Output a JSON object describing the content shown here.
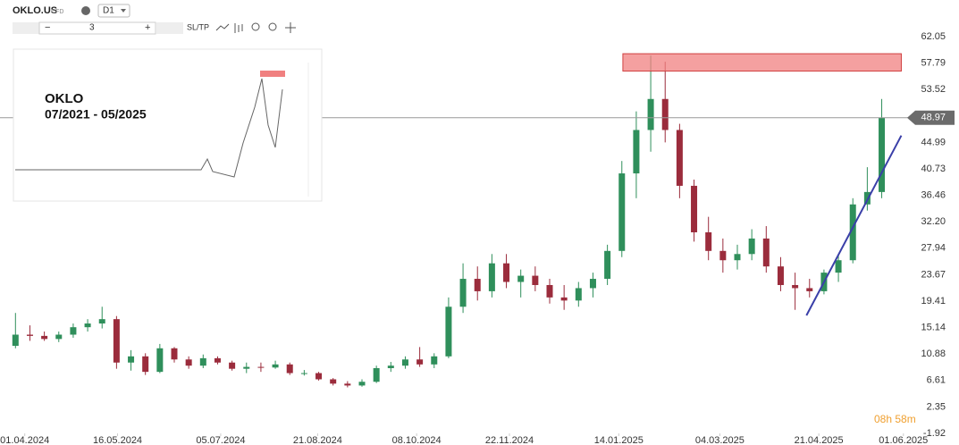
{
  "toolbar": {
    "symbol": "OKLO.US",
    "instrument": "CFD",
    "timeframe": "D1",
    "quantity": "3",
    "sltp": "SL/TP"
  },
  "chart_data": {
    "type": "candlestick",
    "annotation": {
      "title": "OKLO",
      "period": "07/2021 - 05/2025"
    },
    "x": [
      "25.03.2024",
      "01.04.2024",
      "08.04.2024",
      "15.04.2024",
      "22.04.2024",
      "29.04.2024",
      "06.05.2024",
      "13.05.2024",
      "20.05.2024",
      "27.05.2024",
      "03.06.2024",
      "10.06.2024",
      "17.06.2024",
      "24.06.2024",
      "01.07.2024",
      "08.07.2024",
      "15.07.2024",
      "22.07.2024",
      "29.07.2024",
      "05.08.2024",
      "12.08.2024",
      "19.08.2024",
      "26.08.2024",
      "02.09.2024",
      "09.09.2024",
      "16.09.2024",
      "23.09.2024",
      "30.09.2024",
      "07.10.2024",
      "14.10.2024",
      "21.10.2024",
      "28.10.2024",
      "04.11.2024",
      "11.11.2024",
      "18.11.2024",
      "25.11.2024",
      "02.12.2024",
      "09.12.2024",
      "16.12.2024",
      "23.12.2024",
      "30.12.2024",
      "06.01.2025",
      "13.01.2025",
      "20.01.2025",
      "27.01.2025",
      "03.02.2025",
      "10.02.2025",
      "17.02.2025",
      "24.02.2025",
      "03.03.2025",
      "10.03.2025",
      "17.03.2025",
      "24.03.2025",
      "31.03.2025",
      "07.04.2025",
      "14.04.2025",
      "21.04.2025",
      "28.04.2025",
      "05.05.2025",
      "12.05.2025",
      "19.05.2025"
    ],
    "open": [
      12.2,
      14.0,
      13.8,
      13.3,
      14.0,
      15.2,
      15.8,
      16.5,
      9.5,
      10.5,
      8.0,
      11.8,
      10.0,
      9.0,
      10.2,
      9.5,
      8.5,
      8.8,
      8.7,
      9.2,
      7.8,
      7.8,
      6.8,
      6.1,
      5.8,
      6.4,
      8.6,
      9.0,
      10.0,
      9.2,
      10.5,
      18.5,
      23.0,
      21.0,
      25.5,
      22.5,
      23.5,
      22.0,
      20.0,
      19.5,
      21.5,
      23.0,
      27.5,
      40.0,
      47.0,
      52.0,
      47.0,
      38.0,
      30.5,
      27.5,
      26.0,
      27.0,
      29.5,
      25.0,
      22.0,
      21.5,
      21.0,
      24.0,
      26.0,
      35.0,
      37.0
    ],
    "high": [
      17.5,
      15.5,
      14.5,
      14.5,
      15.8,
      16.5,
      18.5,
      17.0,
      11.5,
      11.0,
      12.5,
      12.0,
      10.5,
      10.8,
      10.5,
      9.8,
      9.5,
      9.5,
      9.8,
      9.5,
      8.3,
      8.0,
      7.0,
      6.5,
      6.8,
      9.0,
      9.6,
      10.5,
      12.0,
      11.0,
      20.0,
      25.5,
      25.0,
      27.0,
      27.0,
      24.5,
      25.0,
      23.0,
      22.0,
      22.5,
      24.0,
      28.5,
      42.0,
      50.0,
      59.0,
      58.0,
      48.0,
      39.0,
      33.0,
      29.5,
      28.5,
      31.0,
      31.5,
      26.5,
      24.0,
      23.0,
      24.5,
      27.0,
      36.0,
      41.0,
      52.0
    ],
    "low": [
      11.8,
      13.0,
      13.0,
      12.8,
      13.5,
      14.5,
      15.0,
      8.5,
      8.2,
      7.5,
      7.8,
      9.5,
      8.5,
      8.6,
      9.2,
      8.2,
      7.8,
      8.0,
      8.5,
      7.5,
      7.4,
      6.6,
      5.8,
      5.5,
      5.6,
      6.2,
      8.0,
      8.5,
      8.8,
      8.6,
      10.2,
      17.5,
      19.5,
      20.0,
      21.5,
      20.0,
      21.0,
      19.0,
      18.0,
      18.5,
      20.0,
      22.0,
      26.5,
      36.0,
      43.5,
      45.0,
      36.0,
      29.0,
      26.0,
      24.0,
      24.5,
      26.0,
      24.0,
      21.0,
      18.0,
      20.0,
      20.5,
      22.5,
      25.5,
      34.0,
      36.0
    ],
    "close": [
      14.0,
      13.8,
      13.3,
      14.0,
      15.2,
      15.8,
      16.5,
      9.5,
      10.5,
      8.0,
      11.8,
      10.0,
      9.0,
      10.2,
      9.5,
      8.5,
      8.8,
      8.7,
      9.2,
      7.8,
      7.8,
      6.8,
      6.1,
      5.8,
      6.4,
      8.6,
      9.0,
      10.0,
      9.2,
      10.5,
      18.5,
      23.0,
      21.0,
      25.5,
      22.5,
      23.5,
      22.0,
      20.0,
      19.5,
      21.5,
      23.0,
      27.5,
      40.0,
      47.0,
      52.0,
      47.0,
      38.0,
      30.5,
      27.5,
      26.0,
      27.0,
      29.5,
      25.0,
      22.0,
      21.5,
      21.0,
      24.0,
      26.0,
      35.0,
      37.0,
      48.97
    ],
    "up_color": "#2f8f5b",
    "down_color": "#9b2c3c",
    "xlim": [
      "20.03.2024",
      "05.06.2025"
    ],
    "xticks": [
      "01.04.2024",
      "16.05.2024",
      "05.07.2024",
      "21.08.2024",
      "08.10.2024",
      "22.11.2024",
      "14.01.2025",
      "04.03.2025",
      "21.04.2025",
      "01.06.2025"
    ],
    "ylim": [
      -1.92,
      67.96
    ],
    "yticks": [
      62.05,
      57.79,
      53.52,
      44.99,
      40.73,
      36.46,
      {
        "value": 32.2,
        "label": "32.20"
      },
      27.94,
      23.67,
      19.41,
      15.14,
      10.88,
      6.61,
      2.35,
      -1.92
    ],
    "grid": true,
    "current_price": 48.97,
    "zone": {
      "x": [
        "16.01.2025",
        "31.05.2025"
      ],
      "y": [
        56.5,
        59.3
      ],
      "color": "#f08080"
    },
    "trendline": {
      "x": [
        "15.04.2025",
        "31.05.2025"
      ],
      "y": [
        17.1,
        46.1
      ],
      "color": "#3a3fa8"
    },
    "countdown": "08h 58m"
  }
}
